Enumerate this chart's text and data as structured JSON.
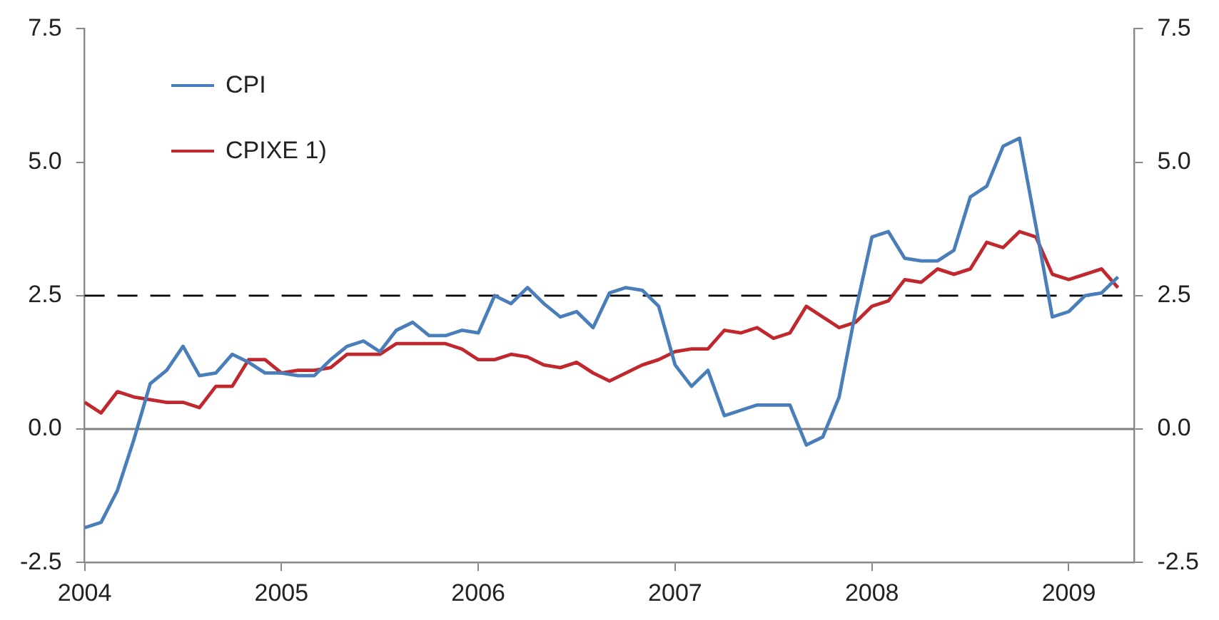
{
  "chart_data": {
    "type": "line",
    "x": [
      "2004-01",
      "2004-02",
      "2004-03",
      "2004-04",
      "2004-05",
      "2004-06",
      "2004-07",
      "2004-08",
      "2004-09",
      "2004-10",
      "2004-11",
      "2004-12",
      "2005-01",
      "2005-02",
      "2005-03",
      "2005-04",
      "2005-05",
      "2005-06",
      "2005-07",
      "2005-08",
      "2005-09",
      "2005-10",
      "2005-11",
      "2005-12",
      "2006-01",
      "2006-02",
      "2006-03",
      "2006-04",
      "2006-05",
      "2006-06",
      "2006-07",
      "2006-08",
      "2006-09",
      "2006-10",
      "2006-11",
      "2006-12",
      "2007-01",
      "2007-02",
      "2007-03",
      "2007-04",
      "2007-05",
      "2007-06",
      "2007-07",
      "2007-08",
      "2007-09",
      "2007-10",
      "2007-11",
      "2007-12",
      "2008-01",
      "2008-02",
      "2008-03",
      "2008-04",
      "2008-05",
      "2008-06",
      "2008-07",
      "2008-08",
      "2008-09",
      "2008-10",
      "2008-11",
      "2008-12",
      "2009-01",
      "2009-02",
      "2009-03",
      "2009-04"
    ],
    "series": [
      {
        "name": "CPI",
        "color": "#4a7ebb",
        "values": [
          -1.85,
          -1.75,
          -1.15,
          -0.2,
          0.85,
          1.1,
          1.55,
          1.0,
          1.05,
          1.4,
          1.25,
          1.05,
          1.05,
          1.0,
          1.0,
          1.3,
          1.55,
          1.65,
          1.45,
          1.85,
          2.0,
          1.75,
          1.75,
          1.85,
          1.8,
          2.5,
          2.35,
          2.65,
          2.35,
          2.1,
          2.2,
          1.9,
          2.55,
          2.65,
          2.6,
          2.3,
          1.2,
          0.8,
          1.1,
          0.25,
          0.35,
          0.45,
          0.45,
          0.45,
          -0.3,
          -0.15,
          0.6,
          2.2,
          3.6,
          3.7,
          3.2,
          3.15,
          3.15,
          3.35,
          4.35,
          4.55,
          5.3,
          5.45,
          3.8,
          2.1,
          2.2,
          2.5,
          2.55,
          2.85
        ]
      },
      {
        "name": "CPIXE 1)",
        "color": "#c0282d",
        "values": [
          0.5,
          0.3,
          0.7,
          0.6,
          0.55,
          0.5,
          0.5,
          0.4,
          0.8,
          0.8,
          1.3,
          1.3,
          1.05,
          1.1,
          1.1,
          1.15,
          1.4,
          1.4,
          1.4,
          1.6,
          1.6,
          1.6,
          1.6,
          1.5,
          1.3,
          1.3,
          1.4,
          1.35,
          1.2,
          1.15,
          1.25,
          1.05,
          0.9,
          1.05,
          1.2,
          1.3,
          1.45,
          1.5,
          1.5,
          1.85,
          1.8,
          1.9,
          1.7,
          1.8,
          2.3,
          2.1,
          1.9,
          2.0,
          2.3,
          2.4,
          2.8,
          2.75,
          3.0,
          2.9,
          3.0,
          3.5,
          3.4,
          3.7,
          3.6,
          2.9,
          2.8,
          2.9,
          3.0,
          2.65
        ]
      }
    ],
    "xlim": [
      "2004-01",
      "2009-05"
    ],
    "xticks": [
      {
        "value": "2004-01",
        "label": "2004"
      },
      {
        "value": "2005-01",
        "label": "2005"
      },
      {
        "value": "2006-01",
        "label": "2006"
      },
      {
        "value": "2007-01",
        "label": "2007"
      },
      {
        "value": "2008-01",
        "label": "2008"
      },
      {
        "value": "2009-01",
        "label": "2009"
      }
    ],
    "ylim": [
      -2.5,
      7.5
    ],
    "yticks": [
      {
        "value": -2.5,
        "label": "-2.5"
      },
      {
        "value": 0,
        "label": "0.0"
      },
      {
        "value": 2.5,
        "label": "2.5"
      },
      {
        "value": 5,
        "label": "5.0"
      },
      {
        "value": 7.5,
        "label": "7.5"
      }
    ],
    "y2lim": [
      -2.5,
      7.5
    ],
    "y2ticks": [
      {
        "value": -2.5,
        "label": "-2.5"
      },
      {
        "value": 0,
        "label": "0.0"
      },
      {
        "value": 2.5,
        "label": "2.5"
      },
      {
        "value": 5,
        "label": "5.0"
      },
      {
        "value": 7.5,
        "label": "7.5"
      }
    ],
    "ref_lines": [
      {
        "axis": "y",
        "value": 2.5,
        "color": "#000000",
        "line_style": "dashed"
      },
      {
        "axis": "y",
        "value": 0,
        "color": "#808080",
        "line_style": "solid"
      }
    ],
    "grid": false,
    "legend": "top left",
    "marker": "none",
    "line_style": "solid"
  }
}
